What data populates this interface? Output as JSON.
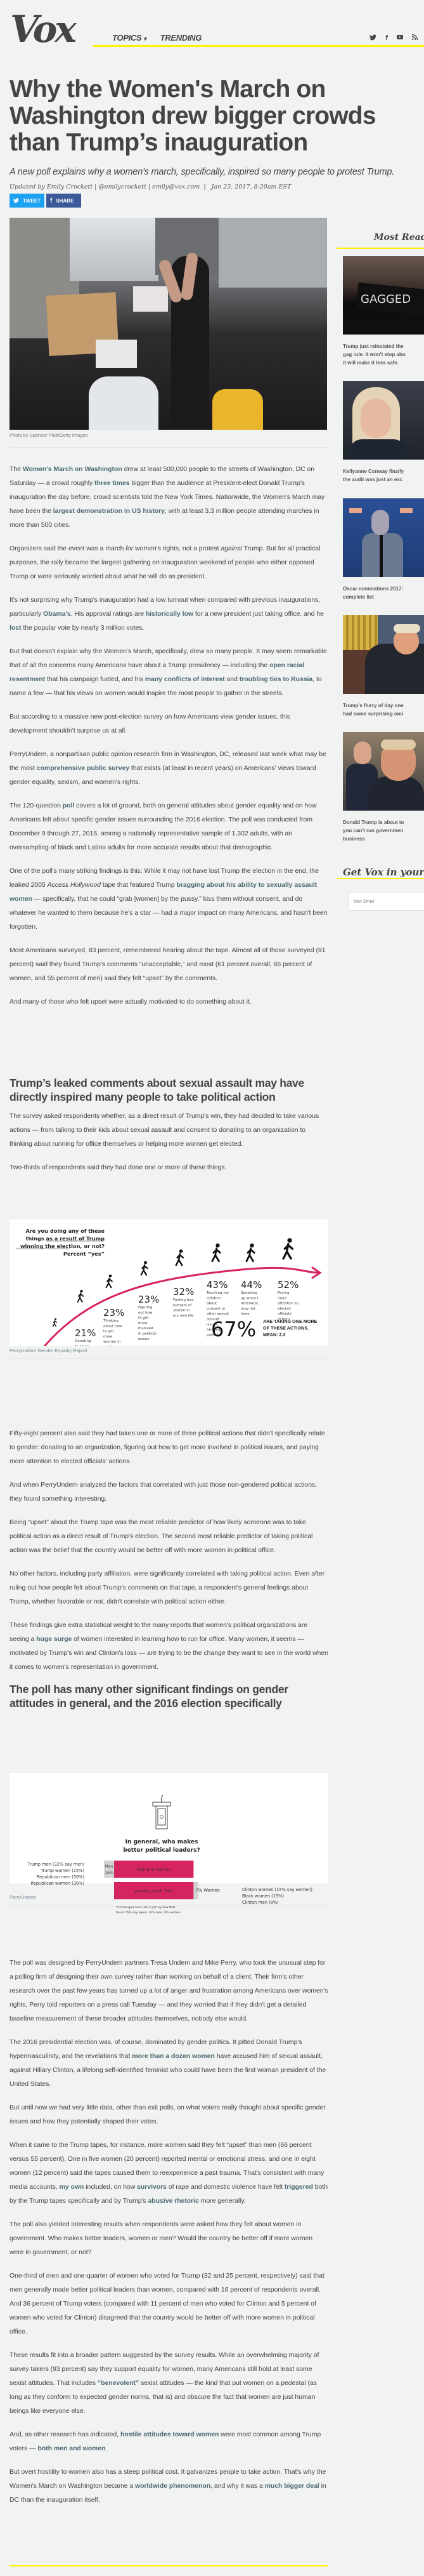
{
  "masthead": {
    "logo": "Vox",
    "nav": [
      {
        "label": "TOPICS",
        "has_dropdown": true
      },
      {
        "label": "TRENDING",
        "has_dropdown": false
      }
    ],
    "social_icons": [
      "twitter-icon",
      "facebook-icon",
      "youtube-icon",
      "rss-icon"
    ],
    "social_glyphs": [
      "𝕥",
      "f",
      "▶",
      "◟"
    ],
    "accent_color": "#fff200"
  },
  "article": {
    "headline": "Why the Women's March on Washington drew bigger crowds than Trump’s inauguration",
    "dek": "A new poll explains why a women's march, specifically, inspired so many people to protest Trump.",
    "byline": {
      "prefix": "Updated by",
      "author": "Emily Crockett",
      "handle": "@emilycrockett",
      "email": "emily@vox.com",
      "date": "Jan 23, 2017, 8:20am EST"
    },
    "share": {
      "tweet_label": "TWEET",
      "share_label": "SHARE",
      "tweet_color": "#1da1f2",
      "share_color": "#3b5998"
    },
    "hero_caption": "Photo by Spencer Platt/Getty Images",
    "link_color": "#4c6a73",
    "paragraphs_1": [
      [
        {
          "t": "The "
        },
        {
          "t": "Women's March on Washington",
          "link": true
        },
        {
          "t": " drew at least 500,000 people to the streets of Washington, DC on Saturday — a crowd roughly "
        },
        {
          "t": "three times",
          "link": true
        },
        {
          "t": " bigger than the audience at President-elect Donald Trump's inauguration the day before, crowd scientists told the New York Times. Nationwide, the Women's March may have been the "
        },
        {
          "t": "largest demonstration in US history",
          "link": true
        },
        {
          "t": ", with at least 3.3 million people attending marches in more than 500 cities."
        }
      ],
      [
        {
          "t": "Organizers said the event was a march "
        },
        {
          "t": "for",
          "em": true
        },
        {
          "t": " women's rights, not a protest "
        },
        {
          "t": "against",
          "em": true
        },
        {
          "t": " Trump. But for all practical purposes, the rally became the largest gathering on inauguration weekend of people who either opposed Trump or were seriously worried about what he will do as president."
        }
      ],
      [
        {
          "t": "It's not surprising why Trump's inauguration had a low turnout when compared with previous inaugurations, particularly "
        },
        {
          "t": "Obama's",
          "link": true
        },
        {
          "t": ". His approval ratings are "
        },
        {
          "t": "historically low",
          "link": true
        },
        {
          "t": " for a new president just taking office, and he "
        },
        {
          "t": "lost",
          "link": true
        },
        {
          "t": " the popular vote by nearly 3 million votes."
        }
      ],
      [
        {
          "t": "But that doesn't explain why the Women's March, specifically, drew so many people. It may seem remarkable that of all the concerns many Americans have about a Trump presidency — including the "
        },
        {
          "t": "open racial resentment",
          "link": true
        },
        {
          "t": " that his campaign fueled, and his "
        },
        {
          "t": "many conflicts of interest",
          "link": true
        },
        {
          "t": " and "
        },
        {
          "t": "troubling ties to Russia",
          "link": true
        },
        {
          "t": ", to name a few — that his views on women would inspire the most people to gather in the streets."
        }
      ],
      [
        {
          "t": "But according to a massive new post-election survey on how Americans view gender issues, this development shouldn't surprise us at all."
        }
      ],
      [
        {
          "t": "PerryUndem, a nonpartisan public opinion research firm in Washington, DC, released last week what may be the most "
        },
        {
          "t": "comprehensive public survey",
          "link": true
        },
        {
          "t": " that exists (at least in recent years) on Americans' views toward gender equality, sexism, and women's rights."
        }
      ],
      [
        {
          "t": "The 120-question "
        },
        {
          "t": "poll",
          "link": true
        },
        {
          "t": " covers a lot of ground, both on general attitudes about gender equality and on how Americans felt about specific gender issues surrounding the 2016 election. The poll was conducted from December 9 through 27, 2016, among a nationally representative sample of 1,302 adults, with an oversampling of black and Latino adults for more accurate results about that demographic."
        }
      ],
      [
        {
          "t": "One of the poll's many striking findings is this: While it may not have lost Trump the election in the end, the leaked 2005 "
        },
        {
          "t": "Access Hollywood",
          "em": true
        },
        {
          "t": " tape that featured Trump "
        },
        {
          "t": "bragging about his ability to sexually assault women",
          "link": true
        },
        {
          "t": " — specifically, that he could “grab [women] by the pussy,” kiss them without consent, and do whatever he wanted to them because he's a star — had a major impact on many Americans, and hasn't been forgotten."
        }
      ],
      [
        {
          "t": "Most Americans surveyed, 83 percent, remembered hearing about the tape. Almost all of those surveyed (91 percent) said they found Trump's comments “unacceptable,” and most (61 percent overall, 66 percent of women, and 55 percent of men) said they felt “upset” by the comments."
        }
      ],
      [
        {
          "t": "And many of those who felt upset were actually motivated to do something about it."
        }
      ]
    ],
    "subhead_1": "Trump’s leaked comments about sexual assault may have directly inspired many people to take political action",
    "paragraphs_2": [
      [
        {
          "t": "The survey asked respondents whether, as a direct result of Trump's win, they had decided to take various actions — from talking to their kids about sexual assault and consent to donating to an organization to thinking about running for office themselves or helping more women get elected."
        }
      ],
      [
        {
          "t": "Two-thirds of respondents said they had done one or more of these things."
        }
      ]
    ],
    "chart1_credit": "PerryUndem Gender Equality Report",
    "paragraphs_3": [
      [
        {
          "t": "Fifty-eight percent also said they had taken one or more of three political actions that didn't specifically relate to gender: donating to an organization, figuring out how to get more involved in political issues, and paying more attention to elected officials' actions."
        }
      ],
      [
        {
          "t": "And when PerryUndem analyzed the factors that correlated with just those non-gendered political actions, they found something interesting."
        }
      ],
      [
        {
          "t": "Being “upset” about the Trump tape was the most reliable predictor of how likely someone was to take political action as a direct result of Trump's election. The second most reliable predictor of taking political action was the belief that the country would be better off with more women in political office."
        }
      ],
      [
        {
          "t": "No other factors, including party affiliation, were significantly correlated with taking political action. Even after ruling out how people felt about Trump's comments on that tape, a respondent's general feelings about Trump, whether favorable or not, didn't correlate with political action either."
        }
      ],
      [
        {
          "t": "These findings give extra statistical weight to the many reports that women's political organizations are seeing a "
        },
        {
          "t": "huge surge",
          "link": true
        },
        {
          "t": " of women interested in learning how to run for office. Many women, it seems — motivated by Trump's win and Clinton's loss — are trying to be the change they want to see in the world when it comes to women's representation in government."
        }
      ]
    ],
    "subhead_2": "The poll has many other significant findings on gender attitudes in general, and the 2016 election specifically",
    "chart2_credit": "PerryUndem",
    "paragraphs_4": [
      [
        {
          "t": "The poll was designed by PerryUndem partners Tresa Undem and Mike Perry, who took the unusual step for a polling firm of designing their own survey rather than working on behalf of a client. Their firm's other research over the past few years has turned up a lot of anger and frustration among Americans over women's rights, Perry told reporters on a press call Tuesday — and they worried that if they didn't get a detailed baseline measurement of these broader attitudes themselves, nobody else would."
        }
      ],
      [
        {
          "t": "The 2016 presidential election was, of course, dominated by gender politics. It pitted Donald Trump's hypermasculinity, and the revelations that "
        },
        {
          "t": "more than a dozen women",
          "link": true
        },
        {
          "t": " have accused him of sexual assault, against Hillary Clinton, a lifelong self-identified feminist who could have been the first woman president of the United States."
        }
      ],
      [
        {
          "t": "But until now we had very little data, other than exit polls, on what voters really thought about specific gender issues and how they potentially shaped their votes."
        }
      ],
      [
        {
          "t": "When it came to the Trump tapes, for instance, more women said they felt “upset” than men (66 percent versus 55 percent). One in five women (20 percent) reported mental or emotional stress, and one in eight women (12 percent) said the tapes caused them to reexperience a past trauma. That's consistent with many media accounts, "
        },
        {
          "t": "my own",
          "link": true
        },
        {
          "t": " included, on how "
        },
        {
          "t": "survivors",
          "link": true
        },
        {
          "t": " of rape and domestic violence have felt "
        },
        {
          "t": "triggered",
          "link": true
        },
        {
          "t": " both by the Trump tapes specifically and by Trump's "
        },
        {
          "t": "abusive rhetoric",
          "link": true
        },
        {
          "t": " more generally."
        }
      ],
      [
        {
          "t": "The poll also yielded interesting results when respondents were asked how they felt about women in government. Who makes better leaders, women or men? Would the country be better off if more women were in government, or not?"
        }
      ],
      [
        {
          "t": "One-third of men and one-quarter of women who voted for Trump (32 and 25 percent, respectively) said that men generally made better political leaders than women, compared with 16 percent of respondents overall. And 36 percent of Trump voters (compared with 11 percent of men who voted for Clinton and 5 percent of women who voted for Clinton) disagreed that the country would be better off with more women in political office."
        }
      ],
      [
        {
          "t": "These results fit into a broader pattern suggested by the survey results. While an overwhelming majority of survey takers (93 percent) say they support equality for women, many Americans still hold at least some sexist attitudes. That includes "
        },
        {
          "t": "“benevolent”",
          "link": true
        },
        {
          "t": " sexist attitudes — the kind that put women on a pedestal (as long as they conform to expected gender norms, that is) and obscure the fact that women are just human beings like everyone else."
        }
      ],
      [
        {
          "t": "And, as other research has indicated, "
        },
        {
          "t": "hostile attitudes toward women",
          "link": true
        },
        {
          "t": " were most common among Trump voters — "
        },
        {
          "t": "both men and women",
          "link": true
        },
        {
          "t": "."
        }
      ],
      [
        {
          "t": "But overt hostility to women also has a steep political cost. It galvanizes people to take action. That's why the Women's March on Washington became a "
        },
        {
          "t": "worldwide phenomenon",
          "link": true
        },
        {
          "t": ", and why it was a "
        },
        {
          "t": "much bigger deal",
          "link": true
        },
        {
          "t": " in DC than the inauguration itself."
        }
      ]
    ]
  },
  "chart_data": [
    {
      "type": "line",
      "title": "Are you doing any of these things as a result of Trump winning the election, or not? Percent “yes”",
      "title_underlined": "as a result of Trump winning the election",
      "categories": [
        "Thinking about running for political office",
        "Donating to an organization",
        "Thinking about how to get more women in political office",
        "Figuring out how to get more involved in political issues",
        "Feeling less tolerant of sexism in my own life",
        "Teaching my children about consent or other sexual assault issues (among parents)",
        "Speaking up when I otherwise may not have",
        "Paying more attention to elected officials' actions"
      ],
      "label_lines": [
        [
          "Thinking",
          "about",
          "running",
          "for",
          "political",
          "office"
        ],
        [
          "Donating",
          "to an or-",
          "ganization"
        ],
        [
          "Thinking",
          "about how",
          "to get",
          "more",
          "women in",
          "political",
          "office"
        ],
        [
          "Figuring",
          "out how",
          "to get",
          "more",
          "involved",
          "in political",
          "issues"
        ],
        [
          "Feeling less",
          "tolerant of",
          "sexism in",
          "my own life"
        ],
        [
          "Teaching my",
          "children",
          "about",
          "consent or",
          "other sexual",
          "assault",
          "issues",
          "(among",
          "parents)"
        ],
        [
          "Speaking",
          "up when I",
          "otherwise",
          "may not",
          "have"
        ],
        [
          "Paying",
          "more",
          "attention to",
          "elected",
          "officials'",
          "actions"
        ]
      ],
      "values": [
        7,
        21,
        23,
        23,
        32,
        43,
        44,
        52
      ],
      "value_labels": [
        "7%",
        "21%",
        "23%",
        "23%",
        "32%",
        "43%",
        "44%",
        "52%"
      ],
      "unit": "%",
      "ylim": [
        0,
        60
      ],
      "summary_value": "67%",
      "summary_text": [
        "ARE TAKING ONE MORE",
        "OF THESE ACTIONS.",
        "MEAN: 2.2"
      ],
      "colors": {
        "curve": "#d6245e",
        "figure": "#111111"
      }
    },
    {
      "type": "bar",
      "title": "In general, who makes better political leaders?",
      "series": [
        {
          "name": "Men",
          "value": 16,
          "label": "Men 16%"
        },
        {
          "name": "Men and women equally good",
          "value": 76,
          "label": "Men and women",
          "label2": "equally good: 76%"
        },
        {
          "name": "Women",
          "value": 7,
          "label": "7% Women"
        }
      ],
      "left_annotations": [
        "Trump men (32% say men)",
        "Trump women (25%)",
        "Republican men (30%)",
        "Republican women (30%)"
      ],
      "right_annotations": [
        "Clinton women (15% say women)",
        "Black women (15%)",
        "Clinton men (8%)"
      ],
      "footnote": [
        "*Unchanged since 2014 poll by Pew that",
        "found 75% say equal, 14% men, 9% women."
      ],
      "colors": {
        "equal": "#d6245e",
        "men": "#d1d3d4",
        "women": "#d1d3d4"
      }
    }
  ],
  "sidebar": {
    "most_read_title": "Most Read",
    "items": [
      {
        "title_lines": [
          "Trump just reinstated the",
          "gag rule. It won't stop abo",
          "it will make it less safe."
        ],
        "image": "gagged-protester"
      },
      {
        "title_lines": [
          "Kellyanne Conway finally",
          "the audit was just an exc"
        ],
        "image": "kellyanne-conway"
      },
      {
        "title_lines": [
          "Oscar nominations 2017:",
          "complete list"
        ],
        "image": "la-la-land-still"
      },
      {
        "title_lines": [
          "Trump's flurry of day one",
          "had some surprising omi"
        ],
        "image": "trump-signing"
      },
      {
        "title_lines": [
          "Donald Trump is about to",
          "you can't run governmen",
          "business"
        ],
        "image": "trump-meeting"
      }
    ],
    "newsletter_title": "Get Vox in your",
    "email_placeholder": "Your Email"
  }
}
